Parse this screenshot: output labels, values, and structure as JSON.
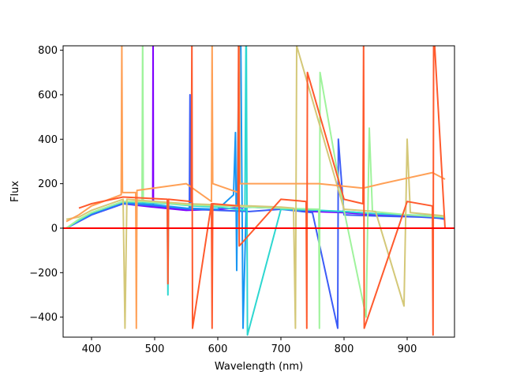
{
  "chart_data": {
    "type": "line",
    "title": "",
    "xlabel": "Wavelength (nm)",
    "ylabel": "Flux",
    "xlim": [
      355,
      975
    ],
    "ylim": [
      -490,
      820
    ],
    "grid": false,
    "legend": "none",
    "x_ticks": [
      {
        "value": 400,
        "label": "400"
      },
      {
        "value": 500,
        "label": "500"
      },
      {
        "value": 600,
        "label": "600"
      },
      {
        "value": 700,
        "label": "700"
      },
      {
        "value": 800,
        "label": "800"
      },
      {
        "value": 900,
        "label": "900"
      }
    ],
    "y_ticks": [
      {
        "value": -400,
        "label": "−400"
      },
      {
        "value": -200,
        "label": "−200"
      },
      {
        "value": 0,
        "label": "0"
      },
      {
        "value": 200,
        "label": "200"
      },
      {
        "value": 400,
        "label": "400"
      },
      {
        "value": 600,
        "label": "600"
      },
      {
        "value": 800,
        "label": "800"
      }
    ],
    "reference_line": {
      "y": 0,
      "color": "#ff0000"
    },
    "series": [
      {
        "color": "#8000ff",
        "x": [
          360,
          380,
          400,
          450,
          497,
          497.5,
          498,
          550,
          600,
          650,
          700,
          750,
          800,
          850,
          900,
          930,
          950,
          960
        ],
        "y": [
          0,
          30,
          60,
          110,
          95,
          900,
          95,
          80,
          85,
          95,
          90,
          75,
          70,
          60,
          55,
          50,
          45,
          40
        ]
      },
      {
        "color": "#3c5cf7",
        "x": [
          360,
          380,
          400,
          450,
          500,
          555,
          556,
          557,
          600,
          650,
          700,
          750,
          790,
          791,
          800,
          850,
          920,
          950,
          960
        ],
        "y": [
          0,
          30,
          60,
          110,
          100,
          85,
          600,
          85,
          80,
          75,
          85,
          70,
          -450,
          400,
          60,
          55,
          50,
          45,
          40
        ]
      },
      {
        "color": "#1996f3",
        "x": [
          360,
          380,
          400,
          450,
          500,
          550,
          600,
          625,
          628,
          630,
          633,
          636,
          640,
          645,
          700,
          750,
          800,
          850,
          900,
          950,
          960
        ],
        "y": [
          0,
          35,
          65,
          115,
          105,
          90,
          85,
          150,
          430,
          -190,
          700,
          1000,
          -450,
          95,
          90,
          80,
          75,
          65,
          60,
          50,
          45
        ]
      },
      {
        "color": "#2dd7d0",
        "x": [
          360,
          380,
          400,
          450,
          520,
          521,
          522,
          560,
          600,
          643,
          645,
          647,
          700,
          760,
          800,
          850,
          900,
          950,
          960
        ],
        "y": [
          0,
          35,
          70,
          120,
          110,
          -300,
          110,
          100,
          95,
          80,
          1000,
          -480,
          85,
          80,
          75,
          65,
          60,
          55,
          50
        ]
      },
      {
        "color": "#9ff39c",
        "x": [
          360,
          380,
          400,
          450,
          480,
          481,
          482,
          550,
          600,
          650,
          700,
          760,
          761,
          762,
          800,
          835,
          840,
          845,
          900,
          960
        ],
        "y": [
          0,
          40,
          70,
          120,
          120,
          900,
          120,
          105,
          100,
          95,
          90,
          85,
          -450,
          700,
          80,
          -400,
          450,
          75,
          60,
          50
        ]
      },
      {
        "color": "#d4c878",
        "x": [
          360,
          380,
          400,
          450,
          453,
          456,
          550,
          600,
          650,
          700,
          720,
          723,
          725,
          800,
          850,
          895,
          900,
          905,
          960
        ],
        "y": [
          40,
          50,
          80,
          130,
          -450,
          130,
          110,
          105,
          100,
          95,
          90,
          -450,
          820,
          85,
          75,
          -350,
          400,
          70,
          55
        ]
      },
      {
        "color": "#ffa056",
        "x": [
          360,
          380,
          400,
          447,
          448,
          449,
          470,
          471,
          472,
          550,
          590,
          591,
          592,
          633,
          634,
          635,
          700,
          760,
          830,
          860,
          940,
          960
        ],
        "y": [
          30,
          60,
          100,
          150,
          850,
          160,
          160,
          -450,
          170,
          200,
          120,
          850,
          200,
          160,
          850,
          200,
          200,
          200,
          180,
          200,
          250,
          220
        ]
      },
      {
        "color": "#ff5a2d",
        "x": [
          380,
          390,
          400,
          450,
          520,
          521,
          522,
          558,
          559,
          560,
          590,
          591,
          592,
          632,
          633,
          634,
          700,
          740,
          741,
          742,
          800,
          830,
          831,
          832,
          900,
          940,
          941,
          942,
          960
        ],
        "y": [
          90,
          100,
          110,
          140,
          130,
          -250,
          130,
          120,
          850,
          -450,
          110,
          -450,
          110,
          100,
          900,
          -80,
          130,
          120,
          -450,
          700,
          130,
          110,
          850,
          -450,
          120,
          100,
          -480,
          900,
          0
        ]
      }
    ]
  }
}
